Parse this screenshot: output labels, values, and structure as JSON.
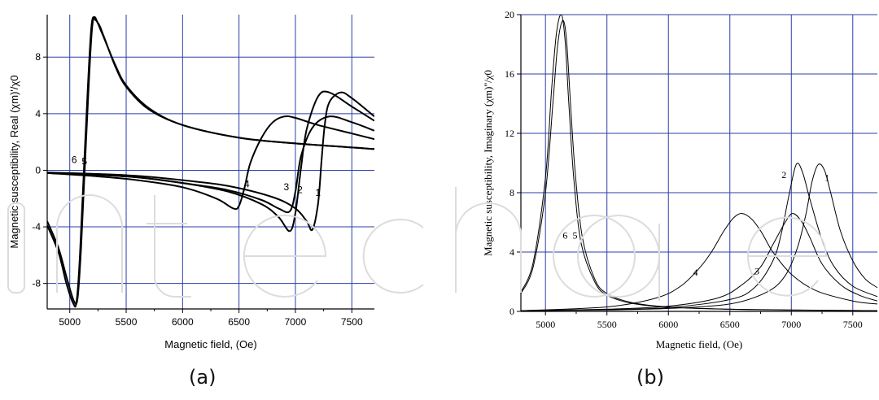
{
  "panels": {
    "a_label": "(a)",
    "b_label": "(b)"
  },
  "chart_data": [
    {
      "type": "line",
      "panel": "(a)",
      "xlabel": "Magnetic field, (Oe)",
      "ylabel": "Magnetic susceptibility, Real (χm)'/χ0",
      "xlim": [
        4800,
        7700
      ],
      "ylim": [
        -9.8,
        11
      ],
      "xticks": [
        5000,
        5500,
        6000,
        6500,
        7000,
        7500
      ],
      "yticks": [
        -8,
        -4,
        0,
        4,
        8
      ],
      "grid": true,
      "series": [
        {
          "name": "1",
          "x": [
            4800,
            5200,
            5600,
            6000,
            6400,
            6800,
            7000,
            7100,
            7150,
            7200,
            7230,
            7260,
            7300,
            7400,
            7500,
            7700
          ],
          "y": [
            -0.15,
            -0.25,
            -0.4,
            -0.7,
            -1.1,
            -1.9,
            -2.7,
            -3.6,
            -4.2,
            -2.4,
            0.5,
            3.2,
            4.8,
            5.5,
            5.1,
            3.8
          ]
        },
        {
          "name": "2",
          "x": [
            4800,
            5200,
            5600,
            6000,
            6400,
            6700,
            6850,
            6950,
            7000,
            7050,
            7100,
            7200,
            7300,
            7500,
            7700
          ],
          "y": [
            -0.2,
            -0.3,
            -0.5,
            -0.9,
            -1.5,
            -2.4,
            -3.3,
            -4.3,
            -3.0,
            0.2,
            2.9,
            5.2,
            5.5,
            4.5,
            3.5
          ]
        },
        {
          "name": "3",
          "x": [
            4800,
            5200,
            5600,
            6000,
            6400,
            6700,
            6850,
            6950,
            7000,
            7050,
            7150,
            7300,
            7500,
            7700
          ],
          "y": [
            -0.2,
            -0.3,
            -0.5,
            -0.9,
            -1.4,
            -2.1,
            -2.7,
            -2.9,
            -1.5,
            1.0,
            3.0,
            3.8,
            3.4,
            2.8
          ]
        },
        {
          "name": "4",
          "x": [
            4800,
            5200,
            5600,
            6000,
            6300,
            6450,
            6500,
            6550,
            6600,
            6700,
            6800,
            6900,
            7000,
            7200,
            7500,
            7700
          ],
          "y": [
            -0.2,
            -0.4,
            -0.7,
            -1.2,
            -2.0,
            -2.7,
            -2.5,
            -1.2,
            0.5,
            2.3,
            3.4,
            3.8,
            3.7,
            3.2,
            2.6,
            2.2
          ]
        },
        {
          "name": "5",
          "x": [
            4800,
            4900,
            4980,
            5040,
            5070,
            5100,
            5150,
            5200,
            5250,
            5300,
            5400,
            5500,
            5700,
            6000,
            6500,
            7000,
            7700
          ],
          "y": [
            -3.6,
            -5.5,
            -7.8,
            -9.3,
            -9.0,
            -5.5,
            3.0,
            10.2,
            10.4,
            9.5,
            7.4,
            5.9,
            4.3,
            3.2,
            2.3,
            1.9,
            1.5
          ]
        },
        {
          "name": "6",
          "x": [
            4800,
            4900,
            4970,
            5030,
            5060,
            5090,
            5140,
            5190,
            5230,
            5280,
            5400,
            5500,
            5700,
            6000,
            6500,
            7000,
            7700
          ],
          "y": [
            -3.9,
            -5.8,
            -8.0,
            -9.4,
            -9.3,
            -6.0,
            2.5,
            10.0,
            10.6,
            9.8,
            7.5,
            6.0,
            4.4,
            3.2,
            2.3,
            1.9,
            1.5
          ]
        }
      ],
      "annotations": [
        {
          "text": "6",
          "x": 5040,
          "y": 0.5
        },
        {
          "text": "5",
          "x": 5130,
          "y": 0.4
        },
        {
          "text": "4",
          "x": 6570,
          "y": -1.2
        },
        {
          "text": "3",
          "x": 6920,
          "y": -1.4
        },
        {
          "text": "2",
          "x": 7040,
          "y": -1.6
        },
        {
          "text": "1",
          "x": 7200,
          "y": -1.8
        }
      ]
    },
    {
      "type": "line",
      "panel": "(b)",
      "xlabel": "Magnetic field, (Oe)",
      "ylabel": "Magnetic susceptibility, Imaginary (χm)''/χ0",
      "xlim": [
        4800,
        7700
      ],
      "ylim": [
        0,
        20
      ],
      "xticks": [
        5000,
        5500,
        6000,
        6500,
        7000,
        7500
      ],
      "yticks": [
        0,
        4,
        8,
        12,
        16,
        20
      ],
      "grid": true,
      "series": [
        {
          "name": "1",
          "x": [
            4800,
            5500,
            6000,
            6500,
            6800,
            6950,
            7050,
            7120,
            7170,
            7220,
            7270,
            7320,
            7400,
            7500,
            7600,
            7700
          ],
          "y": [
            0.05,
            0.1,
            0.2,
            0.5,
            1.3,
            2.4,
            4.3,
            6.6,
            8.8,
            9.9,
            9.5,
            8.0,
            5.4,
            3.4,
            2.2,
            1.6
          ]
        },
        {
          "name": "2",
          "x": [
            4800,
            5500,
            6000,
            6500,
            6700,
            6850,
            6920,
            6980,
            7040,
            7090,
            7150,
            7250,
            7350,
            7500,
            7700
          ],
          "y": [
            0.05,
            0.12,
            0.25,
            0.8,
            1.6,
            3.4,
            5.3,
            7.8,
            9.9,
            9.4,
            7.6,
            4.8,
            3.0,
            1.7,
            1.0
          ]
        },
        {
          "name": "3",
          "x": [
            4800,
            5500,
            6000,
            6400,
            6600,
            6750,
            6850,
            6950,
            7010,
            7080,
            7150,
            7250,
            7400,
            7550,
            7700
          ],
          "y": [
            0.05,
            0.15,
            0.35,
            0.9,
            1.8,
            3.0,
            4.5,
            6.0,
            6.6,
            6.1,
            5.0,
            3.2,
            1.8,
            1.1,
            0.7
          ]
        },
        {
          "name": "4",
          "x": [
            4800,
            5500,
            5900,
            6100,
            6250,
            6350,
            6450,
            6530,
            6600,
            6680,
            6760,
            6850,
            7000,
            7200,
            7500,
            7700
          ],
          "y": [
            0.05,
            0.3,
            0.9,
            1.7,
            2.9,
            4.0,
            5.4,
            6.3,
            6.6,
            6.2,
            5.3,
            4.0,
            2.5,
            1.4,
            0.7,
            0.5
          ]
        },
        {
          "name": "5",
          "x": [
            4800,
            4900,
            5000,
            5060,
            5100,
            5140,
            5170,
            5200,
            5240,
            5300,
            5400,
            5500,
            5700,
            6000,
            6500,
            7000,
            7700
          ],
          "y": [
            1.2,
            3.0,
            8.0,
            14.0,
            18.0,
            19.6,
            18.4,
            14.5,
            9.5,
            5.0,
            2.2,
            1.2,
            0.6,
            0.3,
            0.15,
            0.1,
            0.05
          ]
        },
        {
          "name": "6",
          "x": [
            4800,
            4900,
            5000,
            5050,
            5090,
            5130,
            5160,
            5190,
            5230,
            5290,
            5400,
            5500,
            5700,
            6000,
            6500,
            7000,
            7700
          ],
          "y": [
            1.3,
            3.3,
            9.0,
            15.0,
            18.8,
            20.0,
            18.2,
            14.0,
            9.0,
            4.6,
            2.0,
            1.1,
            0.55,
            0.28,
            0.14,
            0.09,
            0.05
          ]
        }
      ],
      "annotations": [
        {
          "text": "6",
          "x": 5160,
          "y": 4.9
        },
        {
          "text": "5",
          "x": 5240,
          "y": 4.9
        },
        {
          "text": "4",
          "x": 6220,
          "y": 2.4
        },
        {
          "text": "3",
          "x": 6720,
          "y": 2.5
        },
        {
          "text": "2",
          "x": 6940,
          "y": 9.0
        },
        {
          "text": "1",
          "x": 7290,
          "y": 8.8
        }
      ]
    }
  ]
}
